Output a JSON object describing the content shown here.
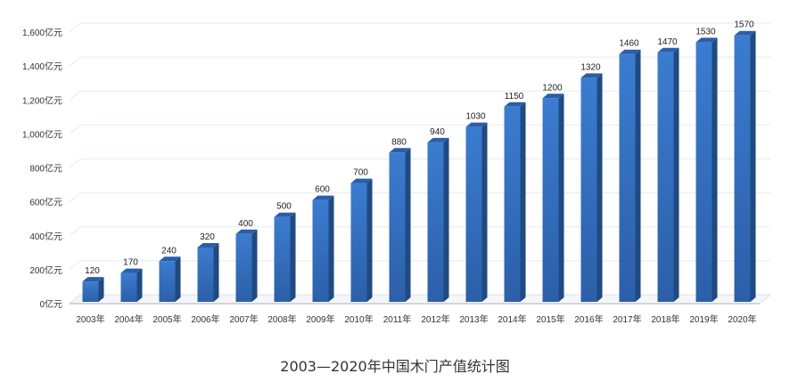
{
  "chart_data": {
    "type": "bar",
    "title": "2003—2020年中国木门产值统计图",
    "categories": [
      "2003年",
      "2004年",
      "2005年",
      "2006年",
      "2007年",
      "2008年",
      "2009年",
      "2010年",
      "2011年",
      "2012年",
      "2013年",
      "2014年",
      "2015年",
      "2016年",
      "2017年",
      "2018年",
      "2019年",
      "2020年"
    ],
    "values": [
      120,
      170,
      240,
      320,
      400,
      500,
      600,
      700,
      880,
      940,
      1030,
      1150,
      1200,
      1320,
      1460,
      1470,
      1530,
      1570
    ],
    "yticks": [
      "0亿元",
      "200亿元",
      "400亿元",
      "600亿元",
      "800亿元",
      "1,000亿元",
      "1,200亿元",
      "1,400亿元",
      "1,600亿元"
    ],
    "ylim": [
      0,
      1600
    ],
    "grid": true,
    "style": "3d-bar",
    "colors": {
      "bar_front": "#3a78c9",
      "bar_side": "#1f4a82",
      "bar_top": "#2a5ea6",
      "grid": "#e3ebf5"
    }
  }
}
